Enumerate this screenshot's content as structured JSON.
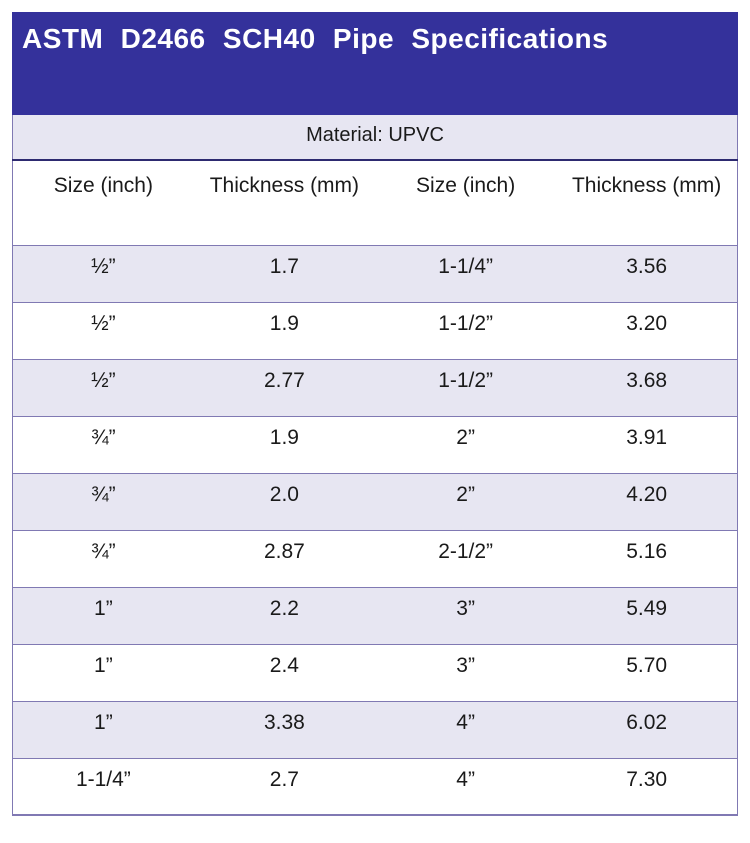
{
  "title": "ASTM D2466 SCH40 Pipe Specifications",
  "material": "Material: UPVC",
  "table": {
    "type": "table",
    "columns": [
      "Size (inch)",
      "Thickness (mm)",
      "Size (inch)",
      "Thickness (mm)"
    ],
    "rows": [
      [
        "½”",
        "1.7",
        "1-1/4”",
        "3.56"
      ],
      [
        "½”",
        "1.9",
        "1-1/2”",
        "3.20"
      ],
      [
        "½”",
        "2.77",
        "1-1/2”",
        "3.68"
      ],
      [
        "¾”",
        "1.9",
        "2”",
        "3.91"
      ],
      [
        "¾”",
        "2.0",
        "2”",
        "4.20"
      ],
      [
        "¾”",
        "2.87",
        "2-1/2”",
        "5.16"
      ],
      [
        "1”",
        "2.2",
        "3”",
        "5.49"
      ],
      [
        "1”",
        "2.4",
        "3”",
        "5.70"
      ],
      [
        "1”",
        "3.38",
        "4”",
        "6.02"
      ],
      [
        "1-1/4”",
        "2.7",
        "4”",
        "7.30"
      ]
    ]
  },
  "colors": {
    "banner_bg": "#34319B",
    "banner_text": "#FFFFFF",
    "stripe_bg": "#E7E6F2",
    "row_border": "#8079B3",
    "material_divider": "#2D2A70",
    "body_text": "#1A1A1A"
  }
}
